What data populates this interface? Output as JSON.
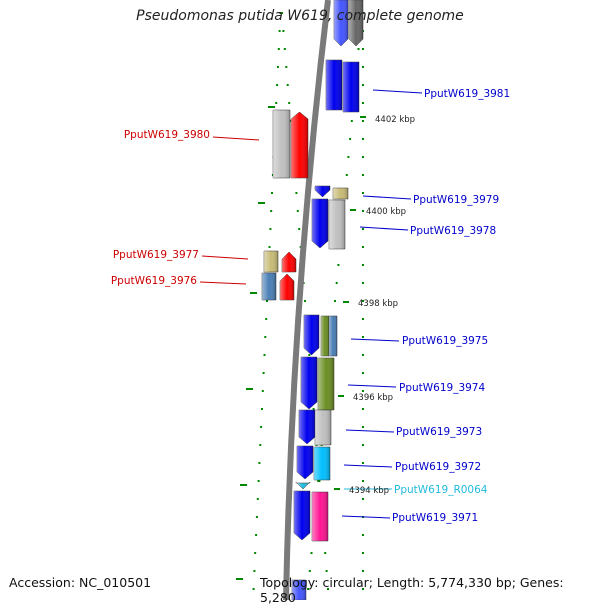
{
  "title": "Pseudomonas putida W619, complete genome",
  "footer": {
    "accession_label": "Accession: NC_010501",
    "topology_label": "Topology: circular; Length: 5,774,330 bp; Genes: 5,280"
  },
  "genes": [
    {
      "name": "PputW619_3981",
      "color": "#0000cc",
      "feature_colors": [
        "#0000ee",
        "#0000ee"
      ]
    },
    {
      "name": "PputW619_3980",
      "color": "#cc0000",
      "feature_colors": [
        "#c0c0c0",
        "#ff0000"
      ]
    },
    {
      "name": "PputW619_3979",
      "color": "#0000cc",
      "feature_colors": [
        "#0000ee",
        "#c8bb77"
      ]
    },
    {
      "name": "PputW619_3978",
      "color": "#0000cc",
      "feature_colors": [
        "#0000ee",
        "#c0c0c0"
      ]
    },
    {
      "name": "PputW619_3977",
      "color": "#cc0000",
      "feature_colors": [
        "#c8bb77",
        "#ff0000"
      ]
    },
    {
      "name": "PputW619_3976",
      "color": "#cc0000",
      "feature_colors": [
        "#4a7fb5",
        "#ff0000"
      ]
    },
    {
      "name": "PputW619_3975",
      "color": "#0000cc",
      "feature_colors": [
        "#0000ee",
        "#6b8e23",
        "#4a7fb5"
      ]
    },
    {
      "name": "PputW619_3974",
      "color": "#0000cc",
      "feature_colors": [
        "#0000ee",
        "#6b8e23"
      ]
    },
    {
      "name": "PputW619_3973",
      "color": "#0000cc",
      "feature_colors": [
        "#0000ee",
        "#c0c0c0"
      ]
    },
    {
      "name": "PputW619_3972",
      "color": "#0000cc",
      "feature_colors": [
        "#0000ee",
        "#00bfff"
      ]
    },
    {
      "name": "PputW619_R0064",
      "color": "#22bbdd",
      "feature_colors": [
        "#22bbdd"
      ]
    },
    {
      "name": "PputW619_3971",
      "color": "#0000cc",
      "feature_colors": [
        "#0000ee",
        "#ff1493"
      ]
    }
  ],
  "ticks": [
    "4402 kbp",
    "4400 kbp",
    "4398 kbp",
    "4396 kbp",
    "4394 kbp"
  ],
  "colors": {
    "backbone": "#7a7a7a",
    "tick": "#008800",
    "tick_label": "#222222"
  }
}
